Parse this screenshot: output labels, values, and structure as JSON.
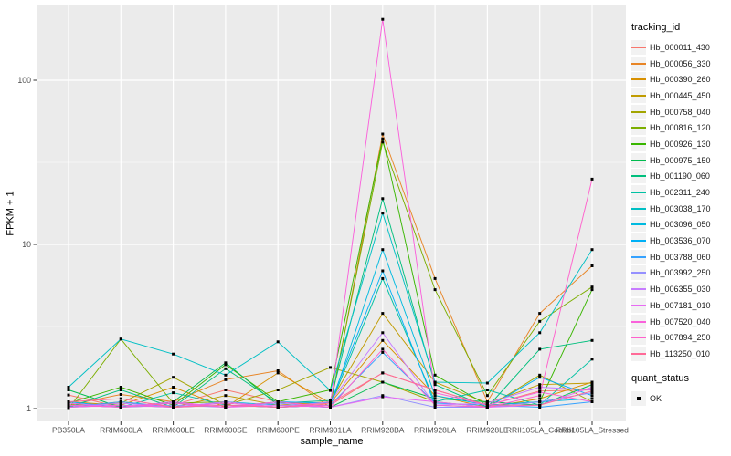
{
  "chart_data": {
    "type": "line",
    "title": "",
    "xlabel": "sample_name",
    "ylabel": "FPKM + 1",
    "y_scale": "log10",
    "y_ticks": [
      1,
      10,
      100
    ],
    "y_minor_ticks": [
      3.1623,
      31.623
    ],
    "ylim": [
      0.84,
      290
    ],
    "grid": "white major and minor gridlines on gray panel",
    "legend_position": "right",
    "categories": [
      "PB350LA",
      "RRIM600LA",
      "RRIM600LE",
      "RRIM600SE",
      "RRIM600PE",
      "RRIM901LA",
      "RRIM928BA",
      "RRIM928LA",
      "RRIM928LE",
      "RRII105LA_Control",
      "RRII105LA_Stressed"
    ],
    "series": [
      {
        "name": "Hb_000011_430",
        "color": "#F8766D",
        "values": [
          1.21,
          1.02,
          1.05,
          1.3,
          1.1,
          1.05,
          1.65,
          1.3,
          1.05,
          1.28,
          1.3
        ]
      },
      {
        "name": "Hb_000056_330",
        "color": "#E88526",
        "values": [
          1.05,
          1.22,
          1.1,
          1.5,
          1.7,
          1.02,
          47,
          6.2,
          1.1,
          3.8,
          7.4
        ]
      },
      {
        "name": "Hb_000390_260",
        "color": "#D89000",
        "values": [
          1.1,
          1.05,
          1.35,
          1.02,
          1.65,
          1.08,
          2.6,
          1.2,
          1.02,
          1.15,
          1.45
        ]
      },
      {
        "name": "Hb_000445_450",
        "color": "#C09B00",
        "values": [
          1.02,
          1.1,
          1.02,
          1.2,
          1.05,
          1.1,
          3.8,
          1.45,
          1.08,
          1.4,
          1.43
        ]
      },
      {
        "name": "Hb_000758_040",
        "color": "#A3A500",
        "values": [
          1.05,
          1.08,
          1.55,
          1.05,
          1.3,
          1.78,
          1.45,
          1.1,
          1.02,
          1.6,
          1.1
        ]
      },
      {
        "name": "Hb_000816_120",
        "color": "#7CAE00",
        "values": [
          1.0,
          2.65,
          1.08,
          1.1,
          1.02,
          1.05,
          42,
          5.3,
          1.2,
          3.4,
          5.5
        ]
      },
      {
        "name": "Hb_000926_130",
        "color": "#39B600",
        "values": [
          1.08,
          1.35,
          1.05,
          1.85,
          1.1,
          1.3,
          44,
          1.6,
          1.05,
          1.1,
          5.3
        ]
      },
      {
        "name": "Hb_000975_150",
        "color": "#00BB4E",
        "values": [
          1.3,
          1.02,
          1.1,
          1.9,
          1.05,
          1.02,
          1.45,
          1.15,
          1.1,
          1.05,
          1.4
        ]
      },
      {
        "name": "Hb_001190_060",
        "color": "#00BF7D",
        "values": [
          1.02,
          1.3,
          1.02,
          1.75,
          1.08,
          1.12,
          19,
          1.4,
          1.02,
          2.3,
          2.6
        ]
      },
      {
        "name": "Hb_002311_240",
        "color": "#00C1A3",
        "values": [
          1.05,
          1.02,
          1.25,
          1.05,
          1.02,
          1.05,
          6.2,
          1.1,
          1.3,
          1.05,
          2.0
        ]
      },
      {
        "name": "Hb_003038_170",
        "color": "#00BFC4",
        "values": [
          1.35,
          2.65,
          2.15,
          1.6,
          2.55,
          1.29,
          15.5,
          1.45,
          1.43,
          2.9,
          9.3
        ]
      },
      {
        "name": "Hb_003096_050",
        "color": "#00BAE0",
        "values": [
          1.02,
          1.05,
          1.02,
          1.1,
          1.05,
          1.02,
          9.3,
          1.2,
          1.05,
          1.1,
          1.15
        ]
      },
      {
        "name": "Hb_003536_070",
        "color": "#00B0F6",
        "values": [
          1.1,
          1.02,
          1.08,
          1.02,
          1.1,
          1.08,
          6.9,
          1.05,
          1.02,
          1.55,
          1.2
        ]
      },
      {
        "name": "Hb_003788_060",
        "color": "#35A2FF",
        "values": [
          1.02,
          1.1,
          1.02,
          1.05,
          1.02,
          1.05,
          2.2,
          1.08,
          1.05,
          1.02,
          1.1
        ]
      },
      {
        "name": "Hb_003992_250",
        "color": "#9590FF",
        "values": [
          1.05,
          1.02,
          1.05,
          1.02,
          1.08,
          1.02,
          1.2,
          1.02,
          1.02,
          1.1,
          1.25
        ]
      },
      {
        "name": "Hb_006355_030",
        "color": "#C77CFF",
        "values": [
          1.02,
          1.08,
          1.02,
          1.1,
          1.02,
          1.1,
          2.9,
          1.05,
          1.08,
          1.35,
          1.3
        ]
      },
      {
        "name": "Hb_007181_010",
        "color": "#E76BF3",
        "values": [
          1.08,
          1.02,
          1.1,
          1.02,
          1.05,
          1.02,
          1.18,
          1.1,
          1.02,
          1.05,
          1.35
        ]
      },
      {
        "name": "Hb_007520_040",
        "color": "#FA62DB",
        "values": [
          1.02,
          1.05,
          1.02,
          1.08,
          1.02,
          1.05,
          235,
          1.25,
          1.05,
          1.26,
          1.1
        ]
      },
      {
        "name": "Hb_007894_250",
        "color": "#FF61CC",
        "values": [
          1.05,
          1.02,
          1.08,
          1.02,
          1.1,
          1.02,
          2.3,
          1.05,
          1.02,
          1.2,
          25
        ]
      },
      {
        "name": "Hb_113250_010",
        "color": "#FF6A98",
        "values": [
          1.1,
          1.15,
          1.02,
          1.05,
          1.02,
          1.08,
          1.65,
          1.3,
          1.05,
          1.05,
          1.28
        ]
      }
    ],
    "legend": {
      "tracking_title": "tracking_id",
      "quant_title": "quant_status",
      "quant_items": [
        {
          "label": "OK",
          "marker": "black-square"
        }
      ]
    },
    "point_marker": {
      "shape": "square",
      "color": "#000000",
      "size": 3
    },
    "style": {
      "panel_fill": "#EBEBEB",
      "grid_color": "#FFFFFF",
      "axis_text_color": "#4D4D4D",
      "tick_color": "#333333",
      "legend_key_fill": "#F2F2F2",
      "point_color": "#000000"
    }
  }
}
